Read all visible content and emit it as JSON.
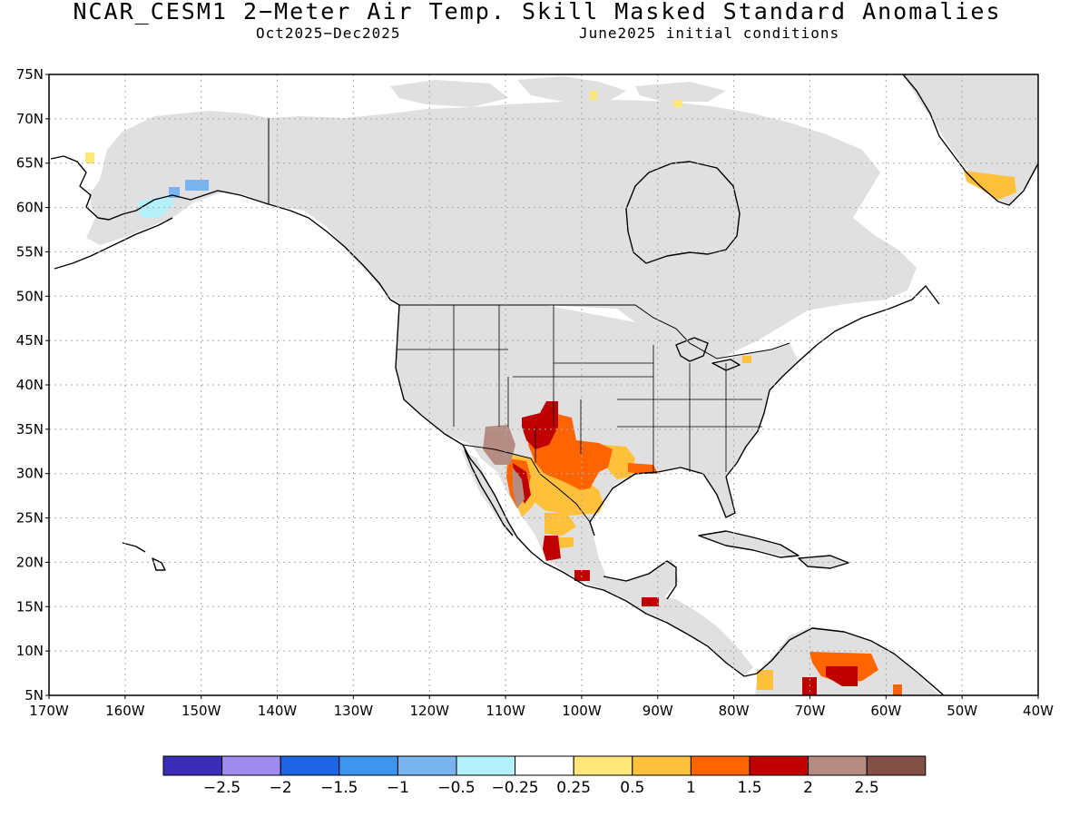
{
  "title": "NCAR_CESM1 2−Meter Air Temp. Skill Masked Standard Anomalies",
  "valid_period": "Oct2025−Dec2025",
  "init_conditions": "June2025 initial conditions",
  "lat_labels": [
    "75N",
    "70N",
    "65N",
    "60N",
    "55N",
    "50N",
    "45N",
    "40N",
    "35N",
    "30N",
    "25N",
    "20N",
    "15N",
    "10N",
    "5N"
  ],
  "lon_labels": [
    "170W",
    "160W",
    "150W",
    "140W",
    "130W",
    "120W",
    "110W",
    "100W",
    "90W",
    "80W",
    "70W",
    "60W",
    "50W",
    "40W"
  ],
  "colorbar": {
    "colors": [
      "#3b2db8",
      "#a08cf0",
      "#1e64e6",
      "#3c96f0",
      "#78b4f0",
      "#b4f0fa",
      "#ffffff",
      "#ffe678",
      "#ffc03c",
      "#ff6400",
      "#c00000",
      "#b48c82",
      "#825046"
    ],
    "labels": [
      "−2.5",
      "−2",
      "−1.5",
      "−1",
      "−0.5",
      "−0.25",
      "0.25",
      "0.5",
      "1",
      "1.5",
      "2",
      "2.5"
    ]
  },
  "colors": {
    "masked_gray": "#e0e0e0",
    "coast": "#000000",
    "grid": "#aaaaaa"
  }
}
